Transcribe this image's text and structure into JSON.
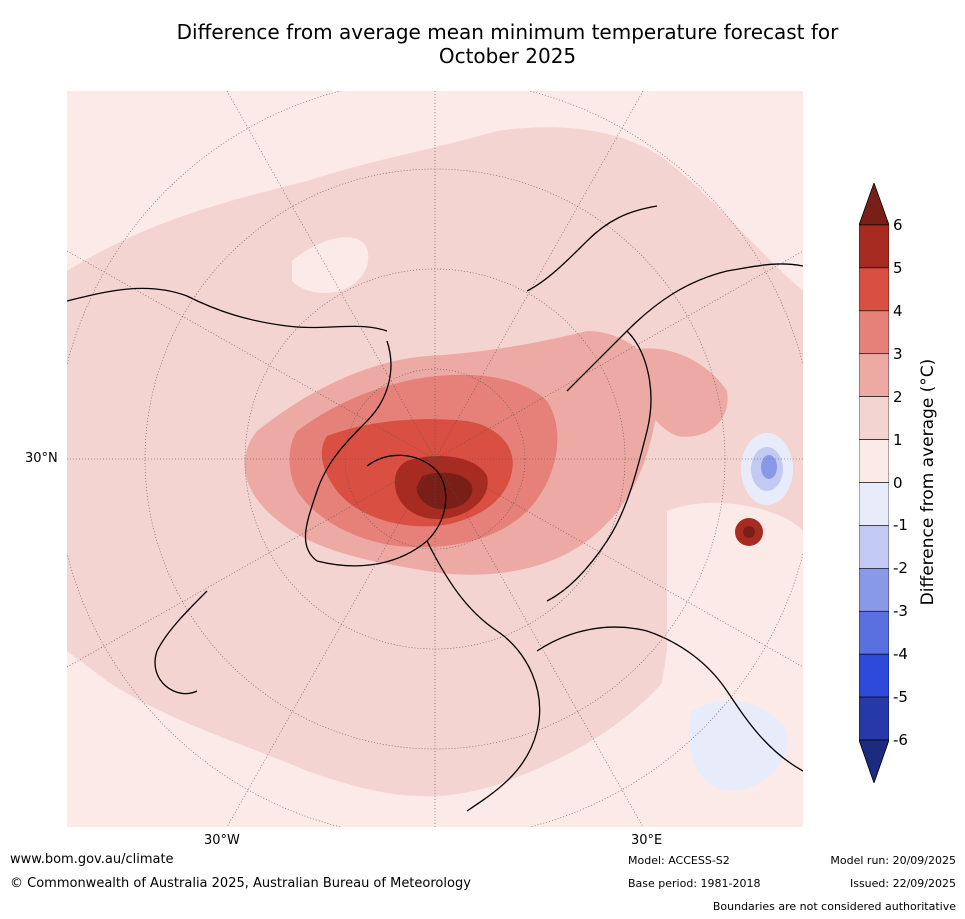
{
  "title_line1": "Difference from average mean minimum temperature forecast for",
  "title_line2": "October 2025",
  "map": {
    "lon_labels": [
      "30°W",
      "30°E"
    ],
    "lat_label": "30°N"
  },
  "colorbar": {
    "label": "Difference from average (°C)",
    "ticks": [
      "6",
      "5",
      "4",
      "3",
      "2",
      "1",
      "0",
      "-1",
      "-2",
      "-3",
      "-4",
      "-5",
      "-6"
    ],
    "colors": {
      "over": "#7a1f18",
      "5_6": "#a82b22",
      "4_5": "#d94f42",
      "3_4": "#e6817a",
      "2_3": "#edaaa5",
      "1_2": "#f4d4d0",
      "0_1": "#fbeae7",
      "m1_0": "#e8ecfa",
      "m2_m1": "#c2c9f2",
      "m3_m2": "#8a98e8",
      "m4_m3": "#5a6fe0",
      "m5_m4": "#2e4ad8",
      "m6_m5": "#2739a8",
      "under": "#1c2a80"
    }
  },
  "footer": {
    "url": "www.bom.gov.au/climate",
    "copyright": "© Commonwealth of Australia 2025, Australian Bureau of Meteorology",
    "model": "Model: ACCESS-S2",
    "base_period": "Base period: 1981-2018",
    "model_run": "Model run: 20/09/2025",
    "issued": "Issued: 22/09/2025",
    "disclaimer": "Boundaries are not considered authoritative"
  }
}
